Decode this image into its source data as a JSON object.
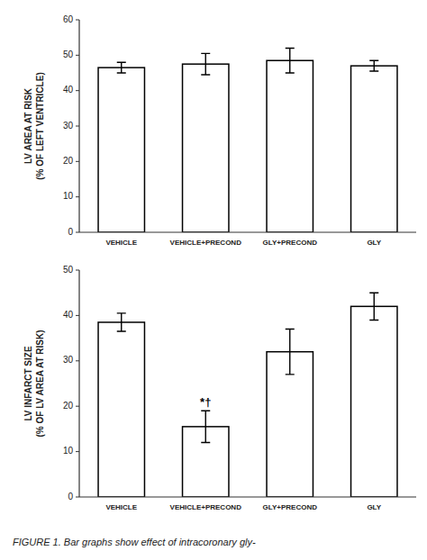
{
  "chart_data": [
    {
      "type": "bar",
      "categories": [
        "VEHICLE",
        "VEHICLE+PRECOND",
        "GLY+PRECOND",
        "GLY"
      ],
      "values": [
        46.5,
        47.5,
        48.5,
        47.0
      ],
      "errors": [
        1.5,
        3.0,
        3.5,
        1.5
      ],
      "ylabel": "LV AREA AT RISK\n(% OF LEFT VENTRICLE)",
      "color": "#ffffff",
      "ylim": [
        0,
        60
      ],
      "yticks": [
        0,
        10,
        20,
        30,
        40,
        50,
        60
      ],
      "grid": false
    },
    {
      "type": "bar",
      "categories": [
        "VEHICLE",
        "VEHICLE+PRECOND",
        "GLY+PRECOND",
        "GLY"
      ],
      "values": [
        38.5,
        15.5,
        32.0,
        42.0
      ],
      "errors": [
        2.0,
        3.5,
        5.0,
        3.0
      ],
      "ylabel": "LV INFARCT SIZE\n(% OF LV AREA AT RISK)",
      "color": "#ffffff",
      "ylim": [
        0,
        50
      ],
      "yticks": [
        0,
        10,
        20,
        30,
        40,
        50
      ],
      "grid": false,
      "annotations": [
        {
          "text": "*†",
          "category": "VEHICLE+PRECOND"
        },
        {
          "text": "FIGURE 1.    Bar graphs show effect of intracoronary gly-"
        }
      ]
    }
  ]
}
